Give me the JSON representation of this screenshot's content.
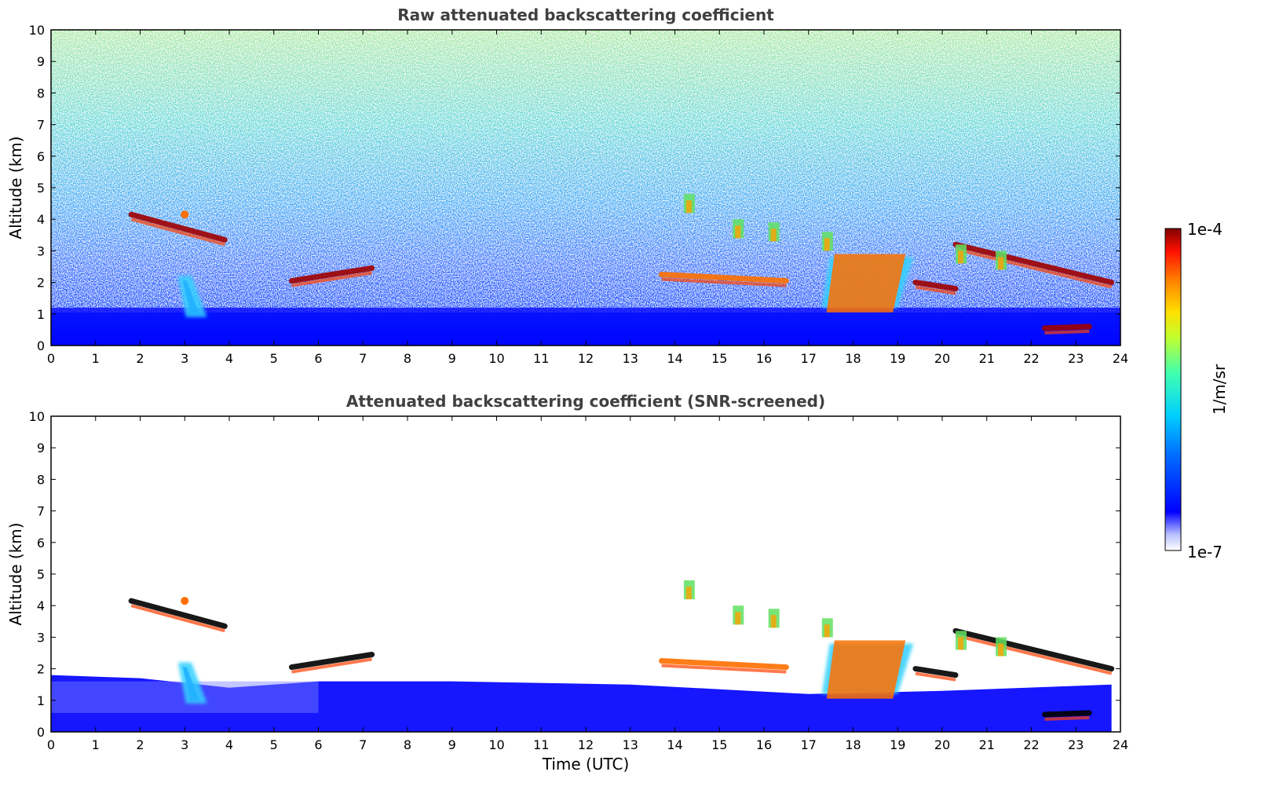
{
  "chart_data": [
    {
      "type": "heatmap",
      "title": "Raw attenuated backscattering coefficient",
      "xlabel": "",
      "ylabel": "Altitude (km)",
      "xlim": [
        0,
        24
      ],
      "ylim": [
        0,
        10
      ],
      "x_ticks": [
        "0",
        "1",
        "2",
        "3",
        "4",
        "5",
        "6",
        "7",
        "8",
        "9",
        "10",
        "11",
        "12",
        "13",
        "14",
        "15",
        "16",
        "17",
        "18",
        "19",
        "20",
        "21",
        "22",
        "23",
        "24"
      ],
      "y_ticks": [
        "0",
        "1",
        "2",
        "3",
        "4",
        "5",
        "6",
        "7",
        "8",
        "9",
        "10"
      ],
      "screened": false,
      "features": [
        {
          "kind": "layer",
          "x": [
            1.8,
            3.9
          ],
          "y": [
            4.15,
            3.35
          ],
          "level": "max"
        },
        {
          "kind": "blob",
          "x": 3.0,
          "y": 4.15,
          "level": "high"
        },
        {
          "kind": "plume",
          "x": [
            2.85,
            3.15
          ],
          "y": [
            0.9,
            2.2
          ],
          "level": "mid"
        },
        {
          "kind": "layer",
          "x": [
            5.4,
            7.2
          ],
          "y": [
            2.05,
            2.45
          ],
          "level": "max"
        },
        {
          "kind": "layer",
          "x": [
            13.7,
            16.5
          ],
          "y": [
            2.25,
            2.05
          ],
          "level": "high"
        },
        {
          "kind": "plume",
          "x": [
            17.3,
            19.0
          ],
          "y": [
            2.8,
            1.2
          ],
          "level": "high"
        },
        {
          "kind": "layer",
          "x": [
            19.4,
            20.3
          ],
          "y": [
            2.0,
            1.8
          ],
          "level": "max"
        },
        {
          "kind": "layer",
          "x": [
            20.3,
            23.8
          ],
          "y": [
            3.2,
            2.0
          ],
          "level": "max"
        },
        {
          "kind": "layer",
          "x": [
            22.3,
            23.3
          ],
          "y": [
            0.55,
            0.6
          ],
          "level": "max"
        }
      ]
    },
    {
      "type": "heatmap",
      "title": "Attenuated backscattering coefficient (SNR-screened)",
      "xlabel": "Time (UTC)",
      "ylabel": "Altitude (km)",
      "xlim": [
        0,
        24
      ],
      "ylim": [
        0,
        10
      ],
      "x_ticks": [
        "0",
        "1",
        "2",
        "3",
        "4",
        "5",
        "6",
        "7",
        "8",
        "9",
        "10",
        "11",
        "12",
        "13",
        "14",
        "15",
        "16",
        "17",
        "18",
        "19",
        "20",
        "21",
        "22",
        "23",
        "24"
      ],
      "y_ticks": [
        "0",
        "1",
        "2",
        "3",
        "4",
        "5",
        "6",
        "7",
        "8",
        "9",
        "10"
      ],
      "screened": true
    }
  ],
  "colorbar": {
    "label": "1/m/sr",
    "max_label": "1e-4",
    "min_label": "1e-7",
    "scale": "log",
    "colormap": "jet",
    "colors": [
      "#ffffff",
      "#0000ff",
      "#00c0ff",
      "#00ff80",
      "#ffff00",
      "#ff8000",
      "#ff0000",
      "#800000"
    ]
  }
}
